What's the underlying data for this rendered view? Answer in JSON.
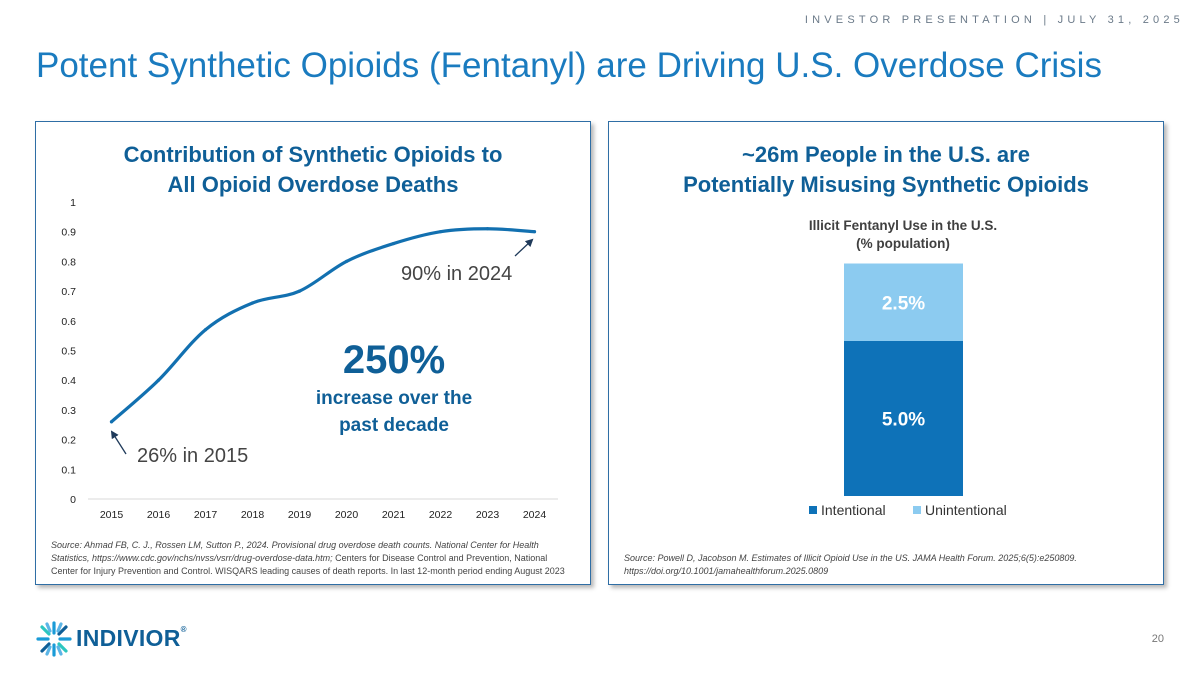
{
  "header": {
    "tag": "INVESTOR PRESENTATION | JULY 31, 2025",
    "title": "Potent Synthetic Opioids (Fentanyl) are Driving U.S. Overdose Crisis"
  },
  "left_panel": {
    "title_line1": "Contribution of Synthetic Opioids to",
    "title_line2": "All Opioid Overdose Deaths",
    "annotation_2024": "90% in 2024",
    "annotation_2015": "26% in 2015",
    "callout_value": "250%",
    "callout_line1": "increase over the",
    "callout_line2": "past decade",
    "source_line1_italic": "Source: Ahmad FB, C. J., Rossen LM, Sutton P., 2024. Provisional drug overdose death counts. National Center for Health",
    "source_line2_italic": "Statistics, https://www.cdc.gov/nchs/nvss/vsrr/drug-overdose-data.htm;",
    "source_line2_rest": " Centers for Disease Control and Prevention, National",
    "source_line3": "Center for Injury Prevention and Control. WISQARS leading causes of death reports.  In last 12-month period ending August 2023"
  },
  "right_panel": {
    "title_line1": "~26m People in the U.S. are",
    "title_line2": "Potentially Misusing Synthetic Opioids",
    "source_line1": "Source: Powell D, Jacobson M. Estimates of Illicit Opioid Use in the US. JAMA Health Forum. 2025;6(5):e250809.",
    "source_line2": "https://doi.org/10.1001/jamahealthforum.2025.0809"
  },
  "chart_data": [
    {
      "type": "line",
      "x": [
        "2015",
        "2016",
        "2017",
        "2018",
        "2019",
        "2020",
        "2021",
        "2022",
        "2023",
        "2024"
      ],
      "series": [
        {
          "values": [
            0.26,
            0.4,
            0.57,
            0.66,
            0.7,
            0.8,
            0.86,
            0.9,
            0.91,
            0.9
          ]
        }
      ],
      "yticks": [
        "0",
        "0.1",
        "0.2",
        "0.3",
        "0.4",
        "0.5",
        "0.6",
        "0.7",
        "0.8",
        "0.9",
        "1"
      ],
      "ylim": [
        0,
        1
      ],
      "grid": false,
      "color": "#1270b0"
    },
    {
      "type": "bar",
      "stacked": true,
      "title_line1": "Illicit Fentanyl Use in the U.S.",
      "title_line2": "(% population)",
      "series": [
        {
          "name": "Intentional",
          "value": 5.0,
          "label": "5.0%",
          "color": "#0e72b8"
        },
        {
          "name": "Unintentional",
          "value": 2.5,
          "label": "2.5%",
          "color": "#8ccbf0"
        }
      ],
      "legend": "bottom"
    }
  ],
  "footer": {
    "logo_text": "INDIVIOR",
    "logo_reg": "®",
    "page_number": "20"
  }
}
